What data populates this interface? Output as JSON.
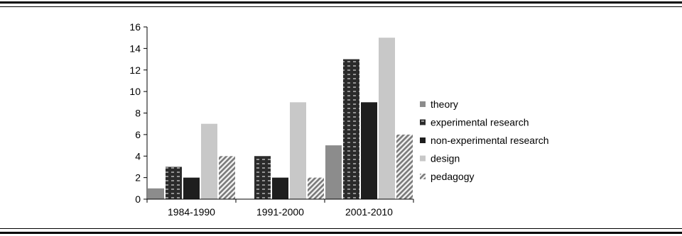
{
  "chart_data": {
    "type": "bar",
    "categories": [
      "1984-1990",
      "1991-2000",
      "2001-2010"
    ],
    "series": [
      {
        "name": "theory",
        "values": [
          1,
          0,
          5
        ]
      },
      {
        "name": "experimental research",
        "values": [
          3,
          4,
          13
        ]
      },
      {
        "name": "non-experimental research",
        "values": [
          2,
          2,
          9
        ]
      },
      {
        "name": "design",
        "values": [
          7,
          9,
          15
        ]
      },
      {
        "name": "pedagogy",
        "values": [
          4,
          2,
          6
        ]
      }
    ],
    "yticks": [
      "0",
      "2",
      "4",
      "6",
      "8",
      "10",
      "12",
      "14",
      "16"
    ],
    "ylim": [
      0,
      16
    ],
    "grid": false,
    "legend": "right",
    "colors": {
      "theory": "#8c8c8c",
      "experimental_research": "#2b2b2b",
      "non_experimental_research": "#1e1e1e",
      "design": "#c8c8c8",
      "pedagogy": "#888888"
    }
  }
}
